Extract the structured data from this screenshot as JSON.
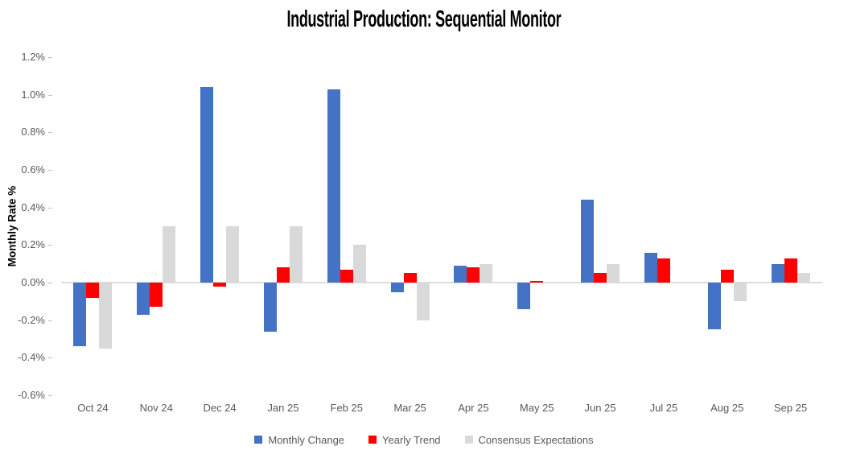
{
  "chart_data": {
    "type": "bar",
    "title": "Industrial Production: Sequential Monitor",
    "xlabel": "",
    "ylabel": "Monthly Rate %",
    "categories": [
      "Oct 24",
      "Nov 24",
      "Dec 24",
      "Jan 25",
      "Feb 25",
      "Mar 25",
      "Apr 25",
      "May 25",
      "Jun 25",
      "Jul 25",
      "Aug 25",
      "Sep 25"
    ],
    "series": [
      {
        "name": "Monthly Change",
        "color": "#4472C4",
        "values": [
          -0.34,
          -0.17,
          1.04,
          -0.26,
          1.03,
          -0.05,
          0.09,
          -0.14,
          0.44,
          0.16,
          -0.25,
          0.1
        ]
      },
      {
        "name": "Yearly Trend",
        "color": "#FF0000",
        "values": [
          -0.08,
          -0.13,
          -0.02,
          0.08,
          0.07,
          0.05,
          0.08,
          0.01,
          0.05,
          0.13,
          0.07,
          0.13
        ]
      },
      {
        "name": "Consensus Expectations",
        "color": "#D9D9D9",
        "values": [
          -0.35,
          0.3,
          0.3,
          0.3,
          0.2,
          -0.2,
          0.1,
          0.0,
          0.1,
          0.0,
          -0.1,
          0.05
        ]
      }
    ],
    "ylim": [
      -0.6,
      1.2
    ],
    "ytick_step": 0.2,
    "ytick_labels": [
      "1.2%",
      "1.0%",
      "0.8%",
      "0.6%",
      "0.4%",
      "0.2%",
      "0.0%",
      "-0.2%",
      "-0.4%",
      "-0.6%"
    ],
    "value_unit": "percent",
    "grid": false,
    "legend_position": "bottom"
  }
}
